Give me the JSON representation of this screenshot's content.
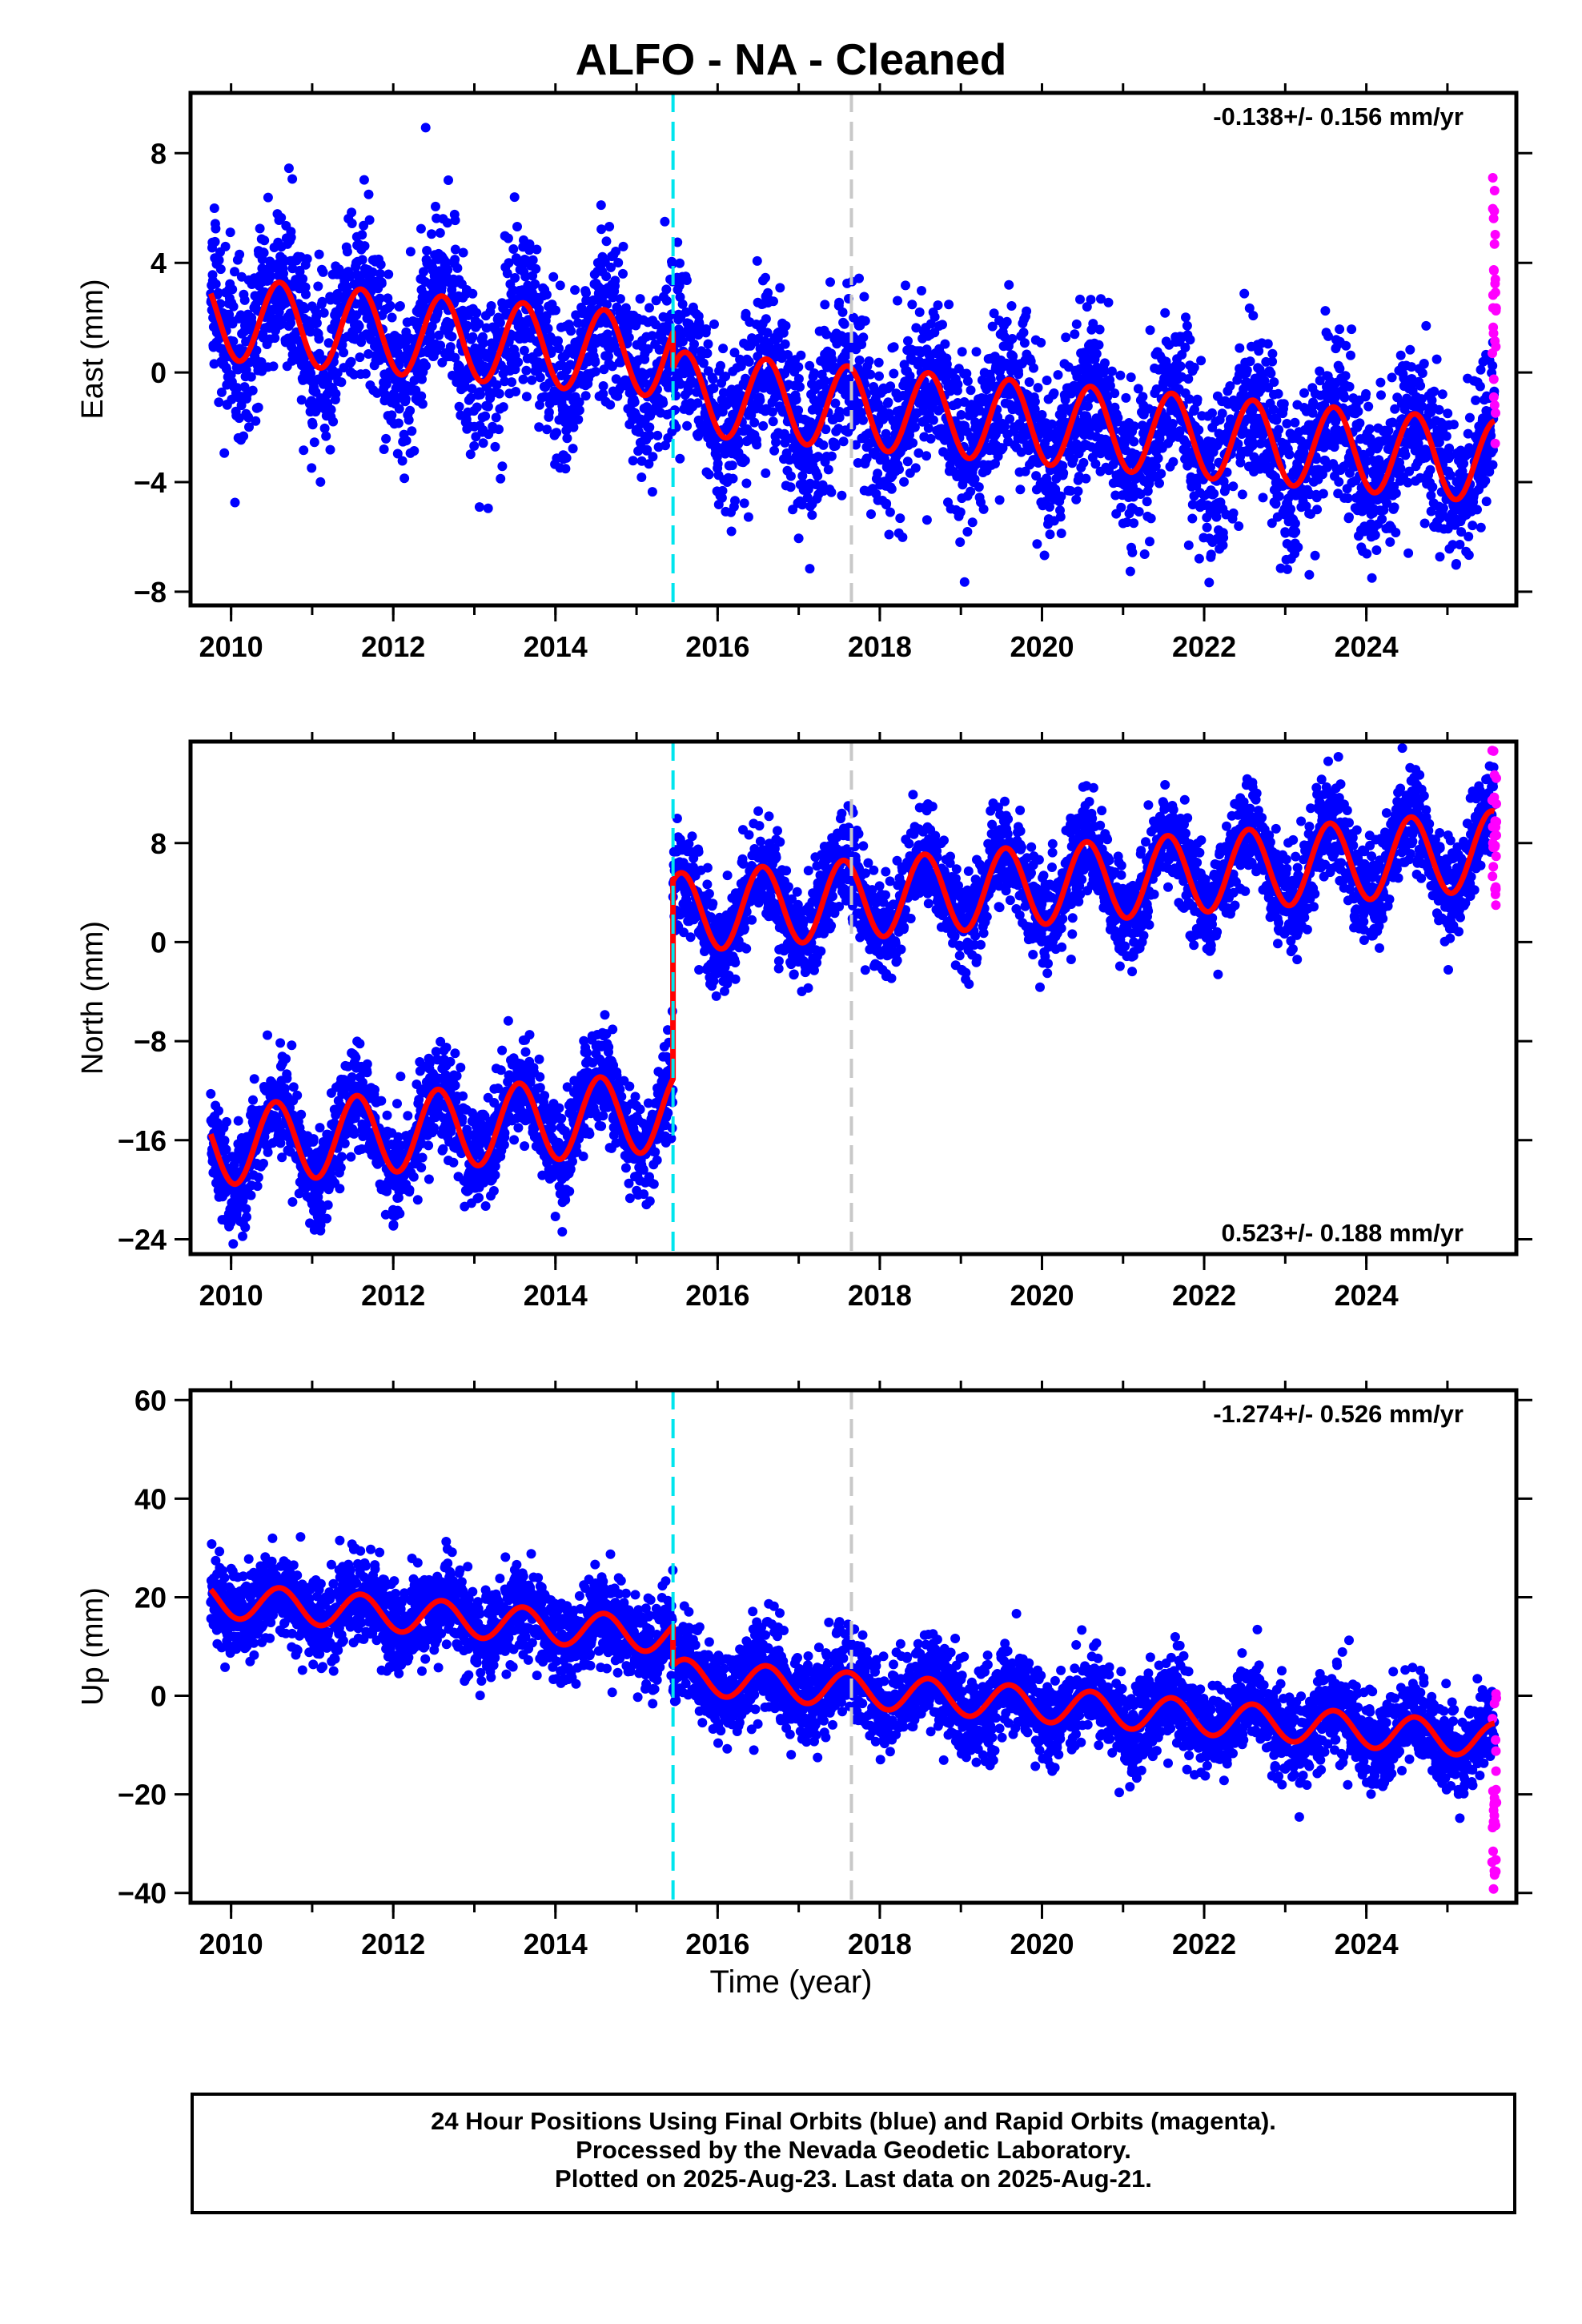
{
  "title": "ALFO  - NA - Cleaned",
  "xlabel": "Time (year)",
  "footer": {
    "line1": "24 Hour Positions Using Final Orbits (blue) and Rapid Orbits (magenta).",
    "line2": "Processed by the Nevada Geodetic Laboratory.",
    "line3": "Plotted on 2025-Aug-23. Last data on 2025-Aug-21."
  },
  "colors": {
    "final_orbits": "#0000ff",
    "rapid_orbits": "#ff00ff",
    "model_fit": "#ff0000",
    "offset_cyan": "#00e5ee",
    "offset_grey": "#c8c8c8"
  },
  "chart_data": [
    {
      "type": "scatter",
      "ylabel": "East (mm)",
      "rate_label": "-0.138+/- 0.156 mm/yr",
      "rate_position": "top-right",
      "xlim": [
        2009.5,
        2025.85
      ],
      "ylim": [
        -8.5,
        10.2
      ],
      "xticks": [
        2010,
        2012,
        2014,
        2016,
        2018,
        2020,
        2022,
        2024
      ],
      "yticks": [
        -8,
        -4,
        0,
        4,
        8
      ],
      "ytick_labels": [
        "−8",
        "−4",
        "0",
        "4",
        "8"
      ],
      "offsets": [
        {
          "x": 2015.45,
          "color": "cyan"
        },
        {
          "x": 2017.65,
          "color": "grey"
        }
      ],
      "grid": false,
      "fit": {
        "trend_start": 2.0,
        "trend_slope": -0.25,
        "step_at": 2015.45,
        "step": -1.3,
        "amplitude": 1.5,
        "peak_phase": 0.6,
        "noise_sd": 1.5
      },
      "span": [
        2009.75,
        2025.58
      ],
      "rapid": {
        "x_range": [
          2025.48,
          2025.62
        ],
        "y_range": [
          -4,
          7.5
        ]
      }
    },
    {
      "type": "scatter",
      "ylabel": "North (mm)",
      "rate_label": "0.523+/- 0.188 mm/yr",
      "rate_position": "bottom-right",
      "xlim": [
        2009.5,
        2025.85
      ],
      "ylim": [
        -25.2,
        16.2
      ],
      "xticks": [
        2010,
        2012,
        2014,
        2016,
        2018,
        2020,
        2022,
        2024
      ],
      "yticks": [
        -24,
        -16,
        -8,
        0,
        8
      ],
      "ytick_labels": [
        "−24",
        "−16",
        "−8",
        "0",
        "8"
      ],
      "offsets": [
        {
          "x": 2015.45,
          "color": "cyan"
        },
        {
          "x": 2017.65,
          "color": "grey"
        }
      ],
      "grid": false,
      "fit": {
        "trend_start": -16.5,
        "trend_slope": 0.5,
        "step_at": 2015.45,
        "step": 16.0,
        "amplitude": 3.2,
        "peak_phase": 0.55,
        "noise_sd": 2.0
      },
      "span": [
        2009.75,
        2025.58
      ],
      "rapid": {
        "x_range": [
          2025.48,
          2025.62
        ],
        "y_range": [
          2.5,
          15.5
        ]
      }
    },
    {
      "type": "scatter",
      "ylabel": "Up (mm)",
      "rate_label": "-1.274+/- 0.526 mm/yr",
      "rate_position": "top-right",
      "xlim": [
        2009.5,
        2025.85
      ],
      "ylim": [
        -42,
        62
      ],
      "xticks": [
        2010,
        2012,
        2014,
        2016,
        2018,
        2020,
        2022,
        2024
      ],
      "yticks": [
        -40,
        -20,
        0,
        20,
        40,
        60
      ],
      "ytick_labels": [
        "−40",
        "−20",
        "0",
        "20",
        "40",
        "60"
      ],
      "offsets": [
        {
          "x": 2015.45,
          "color": "cyan"
        },
        {
          "x": 2017.65,
          "color": "grey"
        }
      ],
      "grid": false,
      "fit": {
        "trend_start": 19.5,
        "trend_slope": -1.3,
        "step_at": 2015.45,
        "step": -8.0,
        "amplitude": 3.5,
        "peak_phase": 0.6,
        "noise_sd": 4.5
      },
      "span": [
        2009.75,
        2025.58
      ],
      "rapid": {
        "x_range": [
          2025.48,
          2025.62
        ],
        "y_range": [
          -40,
          1
        ]
      }
    }
  ]
}
